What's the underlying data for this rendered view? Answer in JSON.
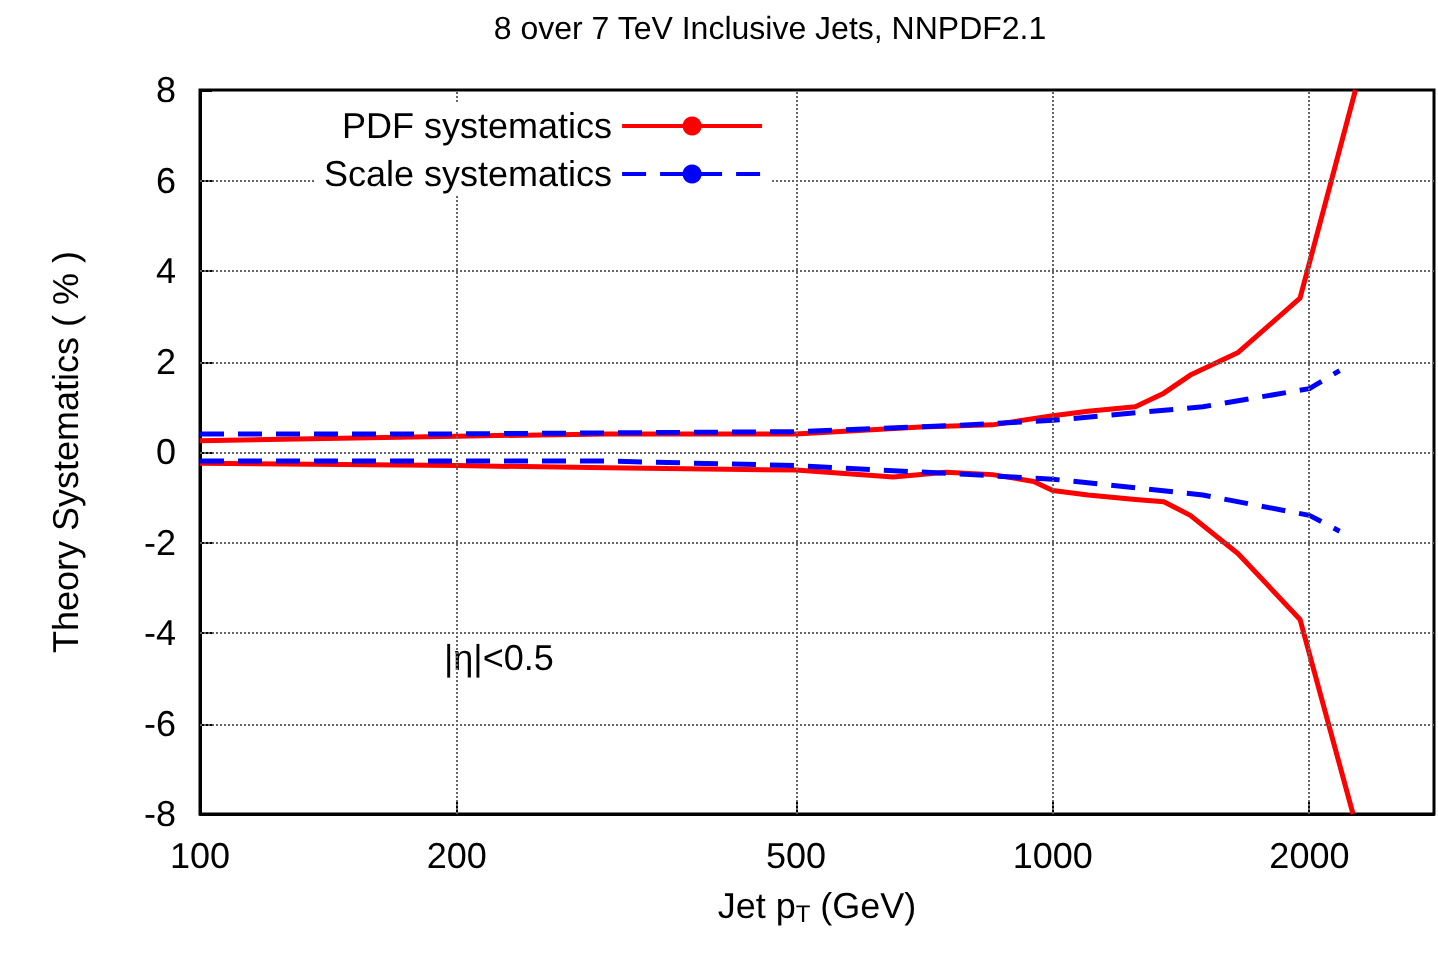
{
  "chart_data": {
    "type": "line",
    "title": "8 over 7 TeV Inclusive Jets, NNPDF2.1",
    "xlabel": "Jet p$_{T}$ (GeV)",
    "ylabel": "Theory Systematics ( % )",
    "annotations": [
      "|η|<0.5"
    ],
    "log": "x",
    "xlim": [
      100,
      2800
    ],
    "xticks": [
      100,
      200,
      500,
      1000,
      2000
    ],
    "ylim": [
      -8,
      8
    ],
    "yticks": [
      -8,
      -6,
      -4,
      -2,
      0,
      2,
      4,
      6,
      8
    ],
    "grid": true,
    "legend": "top left",
    "marker": "none",
    "series": [
      {
        "name": "PDF systematics",
        "color": "#ff0000",
        "line_style": "solid",
        "x": [
          100,
          200,
          300,
          500,
          700,
          850,
          1000,
          1100,
          1250,
          1350,
          1450,
          1650,
          1950,
          2265
        ],
        "values": [
          0.25,
          0.35,
          0.4,
          0.4,
          0.55,
          0.6,
          0.8,
          0.9,
          1.0,
          1.3,
          1.7,
          2.2,
          3.4,
          8
        ]
      },
      {
        "name": "Scale systematics",
        "color": "#0000ff",
        "line_style": "dashed",
        "x": [
          100,
          200,
          500,
          800,
          1000,
          1500,
          2000,
          2170
        ],
        "values": [
          0.4,
          0.4,
          0.45,
          0.6,
          0.7,
          1.0,
          1.4,
          1.8
        ]
      },
      {
        "color": "#ff0000",
        "line_style": "solid",
        "x": [
          100,
          200,
          300,
          500,
          650,
          750,
          850,
          950,
          1000,
          1100,
          1250,
          1350,
          1450,
          1650,
          1950,
          2250
        ],
        "values": [
          -0.25,
          -0.3,
          -0.35,
          -0.4,
          -0.55,
          -0.45,
          -0.5,
          -0.65,
          -0.85,
          -0.95,
          -1.05,
          -1.1,
          -1.4,
          -2.25,
          -3.7,
          -8
        ]
      },
      {
        "color": "#0000ff",
        "line_style": "dashed",
        "x": [
          100,
          300,
          500,
          800,
          1000,
          1500,
          2000,
          2170
        ],
        "values": [
          -0.2,
          -0.2,
          -0.3,
          -0.5,
          -0.6,
          -0.95,
          -1.4,
          -1.75
        ]
      }
    ]
  }
}
